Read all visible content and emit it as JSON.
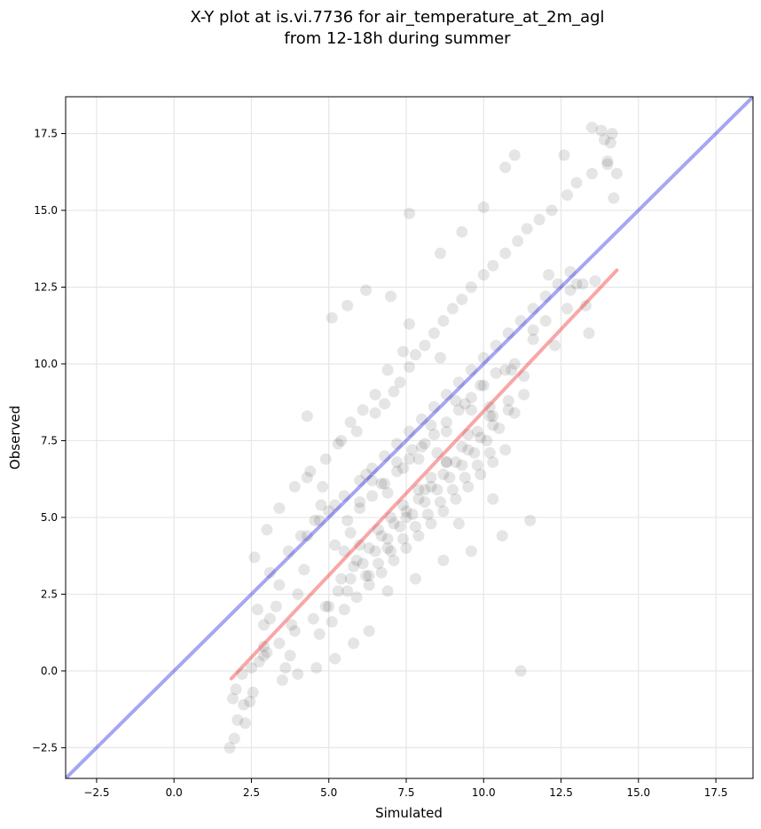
{
  "chart_data": {
    "type": "scatter",
    "title_line1": "X-Y plot at is.vi.7736 for air_temperature_at_2m_agl",
    "title_line2": "from 12-18h during summer",
    "xlabel": "Simulated",
    "ylabel": "Observed",
    "xlim": [
      -3.5,
      18.7
    ],
    "ylim": [
      -3.5,
      18.7
    ],
    "xticks": [
      -2.5,
      0.0,
      2.5,
      5.0,
      7.5,
      10.0,
      12.5,
      15.0,
      17.5
    ],
    "yticks": [
      -2.5,
      0.0,
      2.5,
      5.0,
      7.5,
      10.0,
      12.5,
      15.0,
      17.5
    ],
    "xtick_labels": [
      "−2.5",
      "0.0",
      "2.5",
      "5.0",
      "7.5",
      "10.0",
      "12.5",
      "15.0",
      "17.5"
    ],
    "ytick_labels": [
      "−2.5",
      "0.0",
      "2.5",
      "5.0",
      "7.5",
      "10.0",
      "12.5",
      "15.0",
      "17.5"
    ],
    "grid": true,
    "identity_line": {
      "color": "#0000dd",
      "from": [
        -3.5,
        -3.5
      ],
      "to": [
        18.7,
        18.7
      ]
    },
    "fit_line": {
      "color": "#ee2222",
      "from": [
        1.85,
        -0.25
      ],
      "to": [
        14.3,
        13.05
      ]
    },
    "point_color": "#000000",
    "point_alpha": 0.1,
    "x": [
      1.8,
      1.95,
      2.05,
      2.25,
      2.3,
      2.45,
      2.55,
      2.75,
      2.9,
      2.9,
      3.1,
      3.3,
      3.4,
      3.6,
      3.75,
      3.8,
      4.0,
      4.2,
      4.3,
      4.55,
      4.75,
      5.0,
      5.2,
      5.5,
      5.7,
      5.8,
      6.0,
      6.2,
      6.4,
      6.7,
      6.9,
      7.2,
      7.4,
      7.7,
      7.9,
      8.1,
      8.3,
      8.5,
      8.8,
      9.1,
      9.4,
      9.6,
      9.9,
      10.2,
      10.4,
      10.7,
      11.0,
      11.3,
      11.6,
      12.0,
      12.3,
      12.7,
      13.0,
      13.3,
      13.6,
      13.8,
      14.0,
      14.2,
      14.3,
      14.15,
      13.5,
      12.6,
      11.0,
      10.7,
      10.0,
      9.3,
      8.6,
      7.6,
      7.0,
      6.2,
      5.6,
      5.1,
      4.3,
      4.3,
      4.8,
      5.4,
      5.7,
      6.1,
      6.5,
      6.9,
      7.4,
      7.6,
      8.6,
      11.2,
      13.4,
      11.5,
      10.6,
      10.3,
      9.6,
      9.2,
      8.7,
      7.8,
      6.9,
      6.3,
      5.8,
      5.2,
      4.6,
      4.0,
      3.5,
      3.0,
      2.7,
      2.6,
      3.0,
      3.4,
      3.9,
      4.4,
      4.9,
      5.3,
      5.9,
      6.5,
      6.8,
      7.1,
      7.3,
      7.6,
      7.8,
      8.1,
      8.4,
      8.7,
      9.0,
      9.3,
      9.6,
      10.0,
      10.3,
      10.7,
      11.1,
      11.4,
      11.8,
      12.2,
      12.7,
      13.0,
      13.5,
      14.0,
      14.1,
      13.9,
      12.8,
      12.1,
      11.6,
      10.9,
      10.2,
      9.5,
      8.8,
      8.1,
      7.5,
      6.9,
      6.3,
      5.6,
      5.0,
      4.5,
      3.9,
      3.4,
      2.9,
      2.5,
      2.2,
      2.0,
      1.9,
      3.1,
      3.7,
      4.1,
      4.7,
      5.2,
      5.5,
      6.0,
      6.4,
      6.8,
      7.2,
      7.6,
      8.0,
      8.4,
      8.8,
      9.2,
      9.6,
      10.0,
      10.4,
      10.8,
      11.2,
      11.6,
      12.0,
      12.4,
      12.8,
      13.2,
      6.0,
      6.6,
      7.0,
      7.4,
      7.9,
      8.3,
      8.8,
      9.3,
      9.8,
      10.3,
      10.8,
      5.4,
      5.9,
      6.3,
      6.7,
      7.1,
      7.5,
      7.9,
      8.3,
      8.7,
      9.1,
      9.5,
      9.9,
      10.3,
      10.8,
      11.3,
      4.9,
      5.3,
      5.7,
      6.1,
      6.5,
      6.9,
      7.3,
      7.7,
      8.1,
      8.5,
      8.9,
      9.3,
      9.7,
      10.1,
      10.5,
      11.0,
      6.2,
      6.6,
      7.0,
      7.4,
      7.8,
      8.2,
      8.6,
      9.0,
      9.4,
      9.8,
      10.2,
      5.6,
      6.0,
      6.4,
      6.8,
      7.2,
      7.6,
      8.0,
      8.4,
      8.8,
      9.2,
      9.6,
      10.0,
      4.7,
      5.1,
      5.5,
      5.9,
      6.3,
      6.7,
      7.1,
      7.5,
      7.9,
      8.3,
      8.7,
      9.1,
      9.5,
      9.9,
      10.3,
      10.7
    ],
    "y": [
      -2.5,
      -2.2,
      -1.6,
      -1.1,
      -1.7,
      -1.0,
      -0.7,
      0.3,
      0.8,
      1.5,
      1.7,
      2.1,
      2.8,
      0.1,
      0.5,
      1.5,
      2.5,
      3.3,
      4.4,
      4.9,
      5.4,
      5.2,
      4.1,
      3.9,
      4.5,
      3.4,
      5.5,
      6.4,
      6.2,
      6.1,
      5.8,
      6.8,
      6.6,
      7.2,
      6.9,
      7.4,
      8.0,
      7.1,
      7.8,
      8.8,
      8.7,
      8.5,
      9.3,
      8.3,
      9.7,
      9.8,
      10.0,
      9.6,
      10.8,
      11.4,
      10.6,
      11.8,
      12.6,
      11.9,
      12.7,
      17.6,
      16.6,
      15.4,
      16.2,
      17.5,
      17.7,
      16.8,
      16.8,
      16.4,
      15.1,
      14.3,
      13.6,
      14.9,
      12.2,
      12.4,
      11.9,
      11.5,
      8.3,
      6.3,
      6.0,
      7.5,
      8.1,
      8.5,
      9.0,
      9.8,
      10.4,
      11.3,
      10.2,
      0.0,
      11.0,
      4.9,
      4.4,
      5.6,
      3.9,
      4.8,
      3.6,
      3.0,
      2.6,
      1.3,
      0.9,
      0.4,
      0.1,
      -0.1,
      -0.3,
      0.6,
      2.0,
      3.7,
      4.6,
      5.3,
      6.0,
      6.5,
      6.9,
      7.4,
      7.8,
      8.4,
      8.7,
      9.1,
      9.4,
      9.9,
      10.3,
      10.6,
      11.0,
      11.4,
      11.8,
      12.1,
      12.5,
      12.9,
      13.2,
      13.6,
      14.0,
      14.4,
      14.7,
      15.0,
      15.5,
      15.9,
      16.2,
      16.5,
      17.2,
      17.3,
      13.0,
      12.9,
      11.1,
      9.8,
      8.6,
      7.7,
      6.8,
      5.9,
      5.0,
      4.0,
      3.1,
      2.6,
      2.1,
      1.7,
      1.3,
      0.9,
      0.5,
      0.1,
      -0.1,
      -0.6,
      -0.9,
      3.2,
      3.9,
      4.4,
      4.9,
      5.4,
      5.7,
      6.2,
      6.6,
      7.0,
      7.4,
      7.8,
      8.2,
      8.6,
      9.0,
      9.4,
      9.8,
      10.2,
      10.6,
      11.0,
      11.4,
      11.8,
      12.2,
      12.6,
      12.4,
      12.6,
      4.1,
      4.6,
      5.0,
      5.4,
      5.9,
      6.3,
      6.8,
      7.3,
      7.8,
      8.3,
      8.8,
      3.0,
      3.6,
      4.0,
      4.4,
      4.8,
      5.2,
      5.6,
      6.0,
      6.4,
      6.8,
      7.2,
      7.6,
      8.0,
      8.5,
      9.0,
      2.1,
      2.6,
      3.0,
      3.5,
      3.9,
      4.3,
      4.7,
      5.1,
      5.5,
      5.9,
      6.3,
      6.7,
      7.1,
      7.5,
      7.9,
      8.4,
      3.1,
      3.5,
      3.9,
      4.3,
      4.7,
      5.1,
      5.5,
      5.9,
      6.3,
      6.7,
      7.1,
      4.9,
      5.3,
      5.7,
      6.1,
      6.5,
      6.9,
      7.3,
      7.7,
      8.1,
      8.5,
      8.9,
      9.3,
      1.2,
      1.6,
      2.0,
      2.4,
      2.8,
      3.2,
      3.6,
      4.0,
      4.4,
      4.8,
      5.2,
      5.6,
      6.0,
      6.4,
      6.8,
      7.2
    ]
  }
}
